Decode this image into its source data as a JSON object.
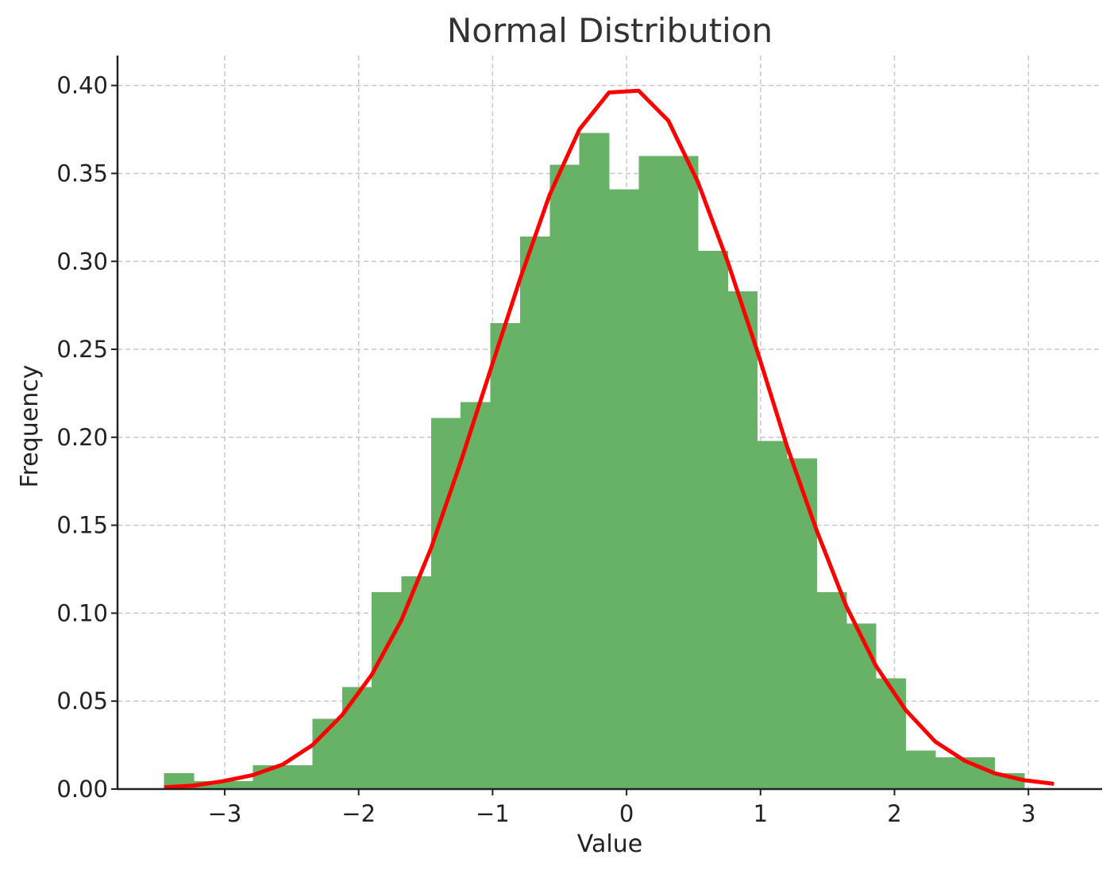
{
  "chart_data": {
    "type": "bar",
    "title": "Normal Distribution",
    "xlabel": "Value",
    "ylabel": "Frequency",
    "xlim": [
      -3.8,
      3.55
    ],
    "ylim": [
      0,
      0.417
    ],
    "x_ticks": [
      -3,
      -2,
      -1,
      0,
      1,
      2,
      3
    ],
    "x_tick_labels": [
      "−3",
      "−2",
      "−1",
      "0",
      "1",
      "2",
      "3"
    ],
    "y_ticks": [
      0,
      0.05,
      0.1,
      0.15,
      0.2,
      0.25,
      0.3,
      0.35,
      0.4
    ],
    "y_tick_labels": [
      "0.00",
      "0.05",
      "0.10",
      "0.15",
      "0.20",
      "0.25",
      "0.30",
      "0.35",
      "0.40"
    ],
    "grid": true,
    "colors": {
      "bars": "#67b267",
      "curve": "#ff0000",
      "axis": "#222222",
      "grid": "#c8c8c8"
    },
    "histogram": {
      "bin_edges": [
        -3.452,
        -3.231,
        -3.009,
        -2.788,
        -2.566,
        -2.345,
        -2.124,
        -1.902,
        -1.681,
        -1.459,
        -1.238,
        -1.017,
        -0.795,
        -0.574,
        -0.352,
        -0.131,
        0.09,
        0.312,
        0.533,
        0.754,
        0.976,
        1.197,
        1.419,
        1.64,
        1.862,
        2.083,
        2.304,
        2.526,
        2.747,
        2.969,
        3.19
      ],
      "values": [
        0.009,
        0.0045,
        0.0045,
        0.0135,
        0.0135,
        0.04,
        0.058,
        0.112,
        0.121,
        0.211,
        0.22,
        0.265,
        0.314,
        0.355,
        0.373,
        0.341,
        0.36,
        0.36,
        0.306,
        0.283,
        0.198,
        0.188,
        0.112,
        0.094,
        0.063,
        0.022,
        0.018,
        0.018,
        0.009,
        0.0
      ]
    },
    "curve": {
      "x": [
        -3.452,
        -3.231,
        -3.009,
        -2.788,
        -2.566,
        -2.345,
        -2.124,
        -1.902,
        -1.681,
        -1.459,
        -1.238,
        -1.017,
        -0.795,
        -0.574,
        -0.352,
        -0.131,
        0.09,
        0.312,
        0.533,
        0.754,
        0.976,
        1.197,
        1.419,
        1.64,
        1.862,
        2.083,
        2.304,
        2.526,
        2.747,
        2.969,
        3.19
      ],
      "y": [
        0.001,
        0.002,
        0.0045,
        0.008,
        0.014,
        0.025,
        0.042,
        0.065,
        0.096,
        0.137,
        0.186,
        0.238,
        0.29,
        0.338,
        0.375,
        0.396,
        0.397,
        0.38,
        0.345,
        0.3,
        0.249,
        0.195,
        0.147,
        0.104,
        0.07,
        0.045,
        0.027,
        0.016,
        0.009,
        0.005,
        0.003
      ]
    }
  }
}
